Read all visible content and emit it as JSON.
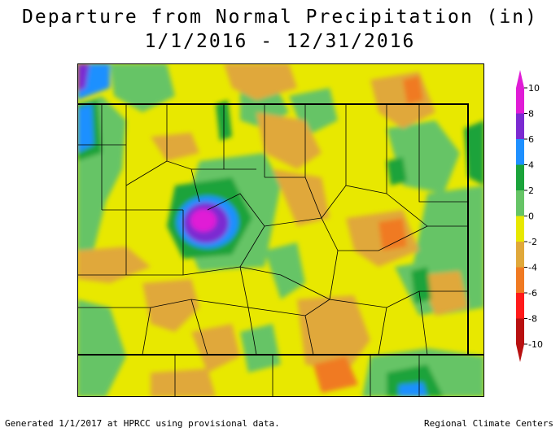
{
  "title_line1": "Departure from Normal Precipitation (in)",
  "title_line2": "1/1/2016 - 12/31/2016",
  "legend": {
    "ticks": [
      "10",
      "8",
      "6",
      "4",
      "2",
      "0",
      "-2",
      "-4",
      "-6",
      "-8",
      "-10"
    ],
    "bands": [
      {
        "from": 8,
        "to": 10,
        "color": "#e01cd6"
      },
      {
        "from": 6,
        "to": 8,
        "color": "#7b2ad1"
      },
      {
        "from": 4,
        "to": 6,
        "color": "#1e90ff"
      },
      {
        "from": 2,
        "to": 4,
        "color": "#1aa33a"
      },
      {
        "from": 0,
        "to": 2,
        "color": "#66c466"
      },
      {
        "from": -2,
        "to": 0,
        "color": "#e8e800"
      },
      {
        "from": -4,
        "to": -2,
        "color": "#e0a83a"
      },
      {
        "from": -6,
        "to": -4,
        "color": "#f07a22"
      },
      {
        "from": -8,
        "to": -6,
        "color": "#ff1a1a"
      },
      {
        "from": -10,
        "to": -8,
        "color": "#b81010"
      }
    ]
  },
  "footer": {
    "left": "Generated 1/1/2017 at HPRCC using provisional data.",
    "right": "Regional Climate Centers"
  }
}
